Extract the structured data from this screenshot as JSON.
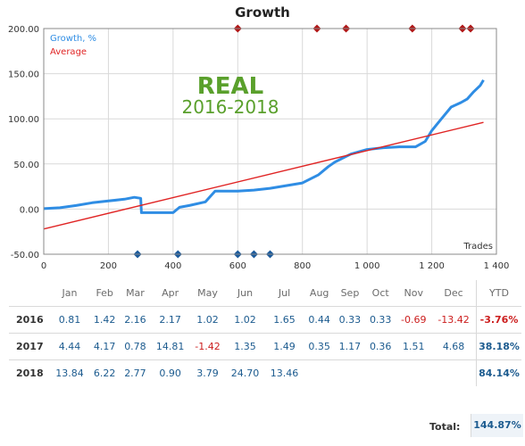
{
  "chart_data": {
    "type": "line",
    "title": "Growth",
    "xlabel": "Trades",
    "xlim": [
      0,
      1400
    ],
    "ylim": [
      -50,
      200
    ],
    "x_ticks": [
      "0",
      "200",
      "400",
      "600",
      "800",
      "1 000",
      "1 200",
      "1 400"
    ],
    "y_ticks": [
      "-50.00",
      "0.00",
      "50.00",
      "100.00",
      "150.00",
      "200.00"
    ],
    "legend": [
      "Growth, %",
      "Average"
    ],
    "watermark": [
      "REAL",
      "2016-2018"
    ],
    "series": [
      {
        "name": "Growth, %",
        "color": "#2f8de4",
        "x": [
          0,
          50,
          100,
          150,
          200,
          250,
          280,
          300,
          302,
          350,
          400,
          420,
          450,
          500,
          530,
          600,
          650,
          700,
          750,
          800,
          850,
          880,
          900,
          950,
          1000,
          1050,
          1100,
          1150,
          1180,
          1200,
          1230,
          1260,
          1290,
          1310,
          1330,
          1350,
          1360
        ],
        "y": [
          0.5,
          1.5,
          4,
          7,
          9,
          11,
          13,
          12,
          -4,
          -4,
          -4,
          2,
          4,
          8,
          20,
          20,
          21,
          23,
          26,
          29,
          38,
          47,
          52,
          61,
          66,
          68,
          69,
          69,
          75,
          87,
          100,
          113,
          118,
          122,
          130,
          137,
          143
        ]
      },
      {
        "name": "Average",
        "color": "#e02424",
        "x": [
          0,
          1360
        ],
        "y": [
          -22,
          96
        ]
      }
    ],
    "markers": {
      "top": [
        600,
        845,
        935,
        1140,
        1295,
        1320
      ],
      "bottom": [
        290,
        415,
        600,
        650,
        700
      ]
    }
  },
  "table": {
    "months": [
      "Jan",
      "Feb",
      "Mar",
      "Apr",
      "May",
      "Jun",
      "Jul",
      "Aug",
      "Sep",
      "Oct",
      "Nov",
      "Dec"
    ],
    "ytd_label": "YTD",
    "rows": [
      {
        "year": "2016",
        "values": [
          "0.81",
          "1.42",
          "2.16",
          "2.17",
          "1.02",
          "1.02",
          "1.65",
          "0.44",
          "0.33",
          "0.33",
          "-0.69",
          "-13.42"
        ],
        "ytd": "-3.76%"
      },
      {
        "year": "2017",
        "values": [
          "4.44",
          "4.17",
          "0.78",
          "14.81",
          "-1.42",
          "1.35",
          "1.49",
          "0.35",
          "1.17",
          "0.36",
          "1.51",
          "4.68"
        ],
        "ytd": "38.18%"
      },
      {
        "year": "2018",
        "values": [
          "13.84",
          "6.22",
          "2.77",
          "0.90",
          "3.79",
          "24.70",
          "13.46",
          "",
          "",
          "",
          "",
          ""
        ],
        "ytd": "84.14%"
      }
    ],
    "total_label": "Total:",
    "total_value": "144.87%"
  },
  "colors": {
    "growth": "#2f8de4",
    "average": "#e02424",
    "marker_top": "#b01818",
    "marker_bottom": "#1a5a9c",
    "watermark_real": "#5aa02c",
    "positive": "#1c5b8f",
    "negative": "#cc1e1e"
  }
}
